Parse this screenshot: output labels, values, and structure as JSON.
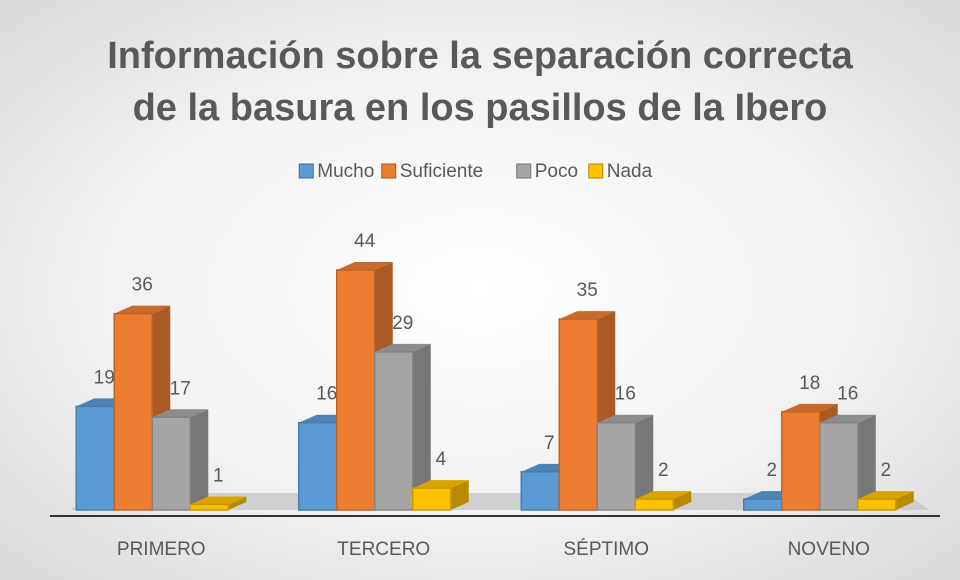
{
  "chart_data": {
    "type": "bar3d",
    "title": "Información sobre la separación correcta de la basura en los pasillos de la Ibero",
    "categories": [
      "PRIMERO",
      "TERCERO",
      "SÉPTIMO",
      "NOVENO"
    ],
    "series": [
      {
        "name": "Mucho",
        "color": "#5b9bd5",
        "values": [
          19,
          16,
          7,
          2
        ]
      },
      {
        "name": "Suficiente",
        "color": "#ed7d31",
        "values": [
          36,
          44,
          35,
          18
        ]
      },
      {
        "name": "Poco",
        "color": "#a5a5a5",
        "values": [
          17,
          29,
          16,
          16
        ]
      },
      {
        "name": "Nada",
        "color": "#ffc000",
        "values": [
          1,
          4,
          2,
          2
        ]
      }
    ],
    "legend": "top"
  }
}
